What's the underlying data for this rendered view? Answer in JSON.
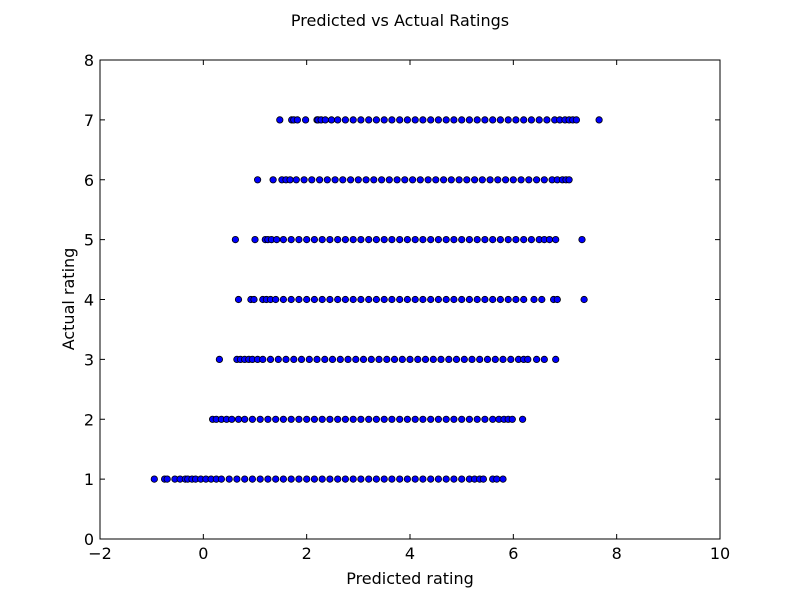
{
  "chart_data": {
    "type": "scatter",
    "title": "Predicted vs Actual Ratings",
    "xlabel": "Predicted rating",
    "ylabel": "Actual rating",
    "xlim": [
      -2,
      10
    ],
    "ylim": [
      0,
      8
    ],
    "xticks": [
      -2,
      0,
      2,
      4,
      6,
      8,
      10
    ],
    "yticks": [
      0,
      1,
      2,
      3,
      4,
      5,
      6,
      7,
      8
    ],
    "grid": false,
    "marker_color": "#0000ff",
    "marker_edge_color": "#000000",
    "points": [
      {
        "y": 7,
        "x": [
          1.48,
          1.71,
          1.75,
          1.82,
          1.98,
          2.2,
          2.22,
          2.28,
          2.36,
          2.48,
          2.6,
          2.75,
          2.9,
          3.05,
          3.2,
          3.35,
          3.5,
          3.65,
          3.8,
          3.95,
          4.1,
          4.25,
          4.4,
          4.55,
          4.7,
          4.85,
          5.0,
          5.15,
          5.3,
          5.45,
          5.6,
          5.75,
          5.9,
          6.05,
          6.2,
          6.35,
          6.5,
          6.65,
          6.8,
          6.9,
          7.0,
          7.08,
          7.15,
          7.22,
          7.66
        ]
      },
      {
        "y": 6,
        "x": [
          1.05,
          1.35,
          1.52,
          1.6,
          1.68,
          1.8,
          1.95,
          2.1,
          2.25,
          2.4,
          2.55,
          2.7,
          2.85,
          3.0,
          3.15,
          3.3,
          3.45,
          3.6,
          3.75,
          3.9,
          4.05,
          4.2,
          4.35,
          4.5,
          4.65,
          4.8,
          4.95,
          5.1,
          5.25,
          5.4,
          5.55,
          5.7,
          5.85,
          6.0,
          6.15,
          6.3,
          6.45,
          6.6,
          6.75,
          6.85,
          6.95,
          7.02,
          7.08
        ]
      },
      {
        "y": 5,
        "x": [
          0.62,
          1.0,
          1.2,
          1.25,
          1.32,
          1.42,
          1.55,
          1.7,
          1.85,
          2.0,
          2.15,
          2.3,
          2.45,
          2.6,
          2.75,
          2.9,
          3.05,
          3.2,
          3.35,
          3.5,
          3.65,
          3.8,
          3.95,
          4.1,
          4.25,
          4.4,
          4.55,
          4.7,
          4.85,
          5.0,
          5.15,
          5.3,
          5.45,
          5.6,
          5.75,
          5.9,
          6.05,
          6.2,
          6.35,
          6.5,
          6.6,
          6.7,
          6.82,
          7.33
        ]
      },
      {
        "y": 4,
        "x": [
          0.68,
          0.92,
          0.98,
          1.15,
          1.22,
          1.3,
          1.4,
          1.55,
          1.7,
          1.85,
          2.0,
          2.15,
          2.3,
          2.45,
          2.6,
          2.75,
          2.9,
          3.05,
          3.2,
          3.35,
          3.5,
          3.65,
          3.8,
          3.95,
          4.1,
          4.25,
          4.4,
          4.55,
          4.7,
          4.85,
          5.0,
          5.15,
          5.3,
          5.45,
          5.6,
          5.75,
          5.9,
          6.05,
          6.2,
          6.4,
          6.55,
          6.78,
          6.85,
          7.37
        ]
      },
      {
        "y": 3,
        "x": [
          0.31,
          0.65,
          0.72,
          0.8,
          0.88,
          0.95,
          1.05,
          1.15,
          1.3,
          1.45,
          1.6,
          1.75,
          1.9,
          2.05,
          2.2,
          2.35,
          2.5,
          2.65,
          2.8,
          2.95,
          3.1,
          3.25,
          3.4,
          3.55,
          3.7,
          3.85,
          4.0,
          4.15,
          4.3,
          4.45,
          4.6,
          4.75,
          4.9,
          5.05,
          5.2,
          5.35,
          5.5,
          5.65,
          5.8,
          5.95,
          6.1,
          6.2,
          6.28,
          6.45,
          6.6,
          6.82
        ]
      },
      {
        "y": 2,
        "x": [
          0.18,
          0.25,
          0.35,
          0.45,
          0.55,
          0.68,
          0.8,
          0.95,
          1.1,
          1.25,
          1.4,
          1.55,
          1.7,
          1.85,
          2.0,
          2.15,
          2.3,
          2.45,
          2.6,
          2.75,
          2.9,
          3.05,
          3.2,
          3.35,
          3.5,
          3.65,
          3.8,
          3.95,
          4.1,
          4.25,
          4.4,
          4.55,
          4.7,
          4.85,
          5.0,
          5.15,
          5.3,
          5.45,
          5.6,
          5.72,
          5.82,
          5.9,
          5.98,
          6.18
        ]
      },
      {
        "y": 1,
        "x": [
          -0.95,
          -0.75,
          -0.7,
          -0.55,
          -0.45,
          -0.35,
          -0.3,
          -0.22,
          -0.15,
          -0.05,
          0.05,
          0.15,
          0.25,
          0.35,
          0.5,
          0.65,
          0.8,
          0.95,
          1.1,
          1.25,
          1.4,
          1.55,
          1.7,
          1.85,
          2.0,
          2.15,
          2.3,
          2.45,
          2.6,
          2.75,
          2.9,
          3.05,
          3.2,
          3.35,
          3.5,
          3.65,
          3.8,
          3.95,
          4.1,
          4.25,
          4.4,
          4.55,
          4.7,
          4.85,
          5.0,
          5.15,
          5.25,
          5.35,
          5.42,
          5.6,
          5.68,
          5.8
        ]
      }
    ]
  }
}
